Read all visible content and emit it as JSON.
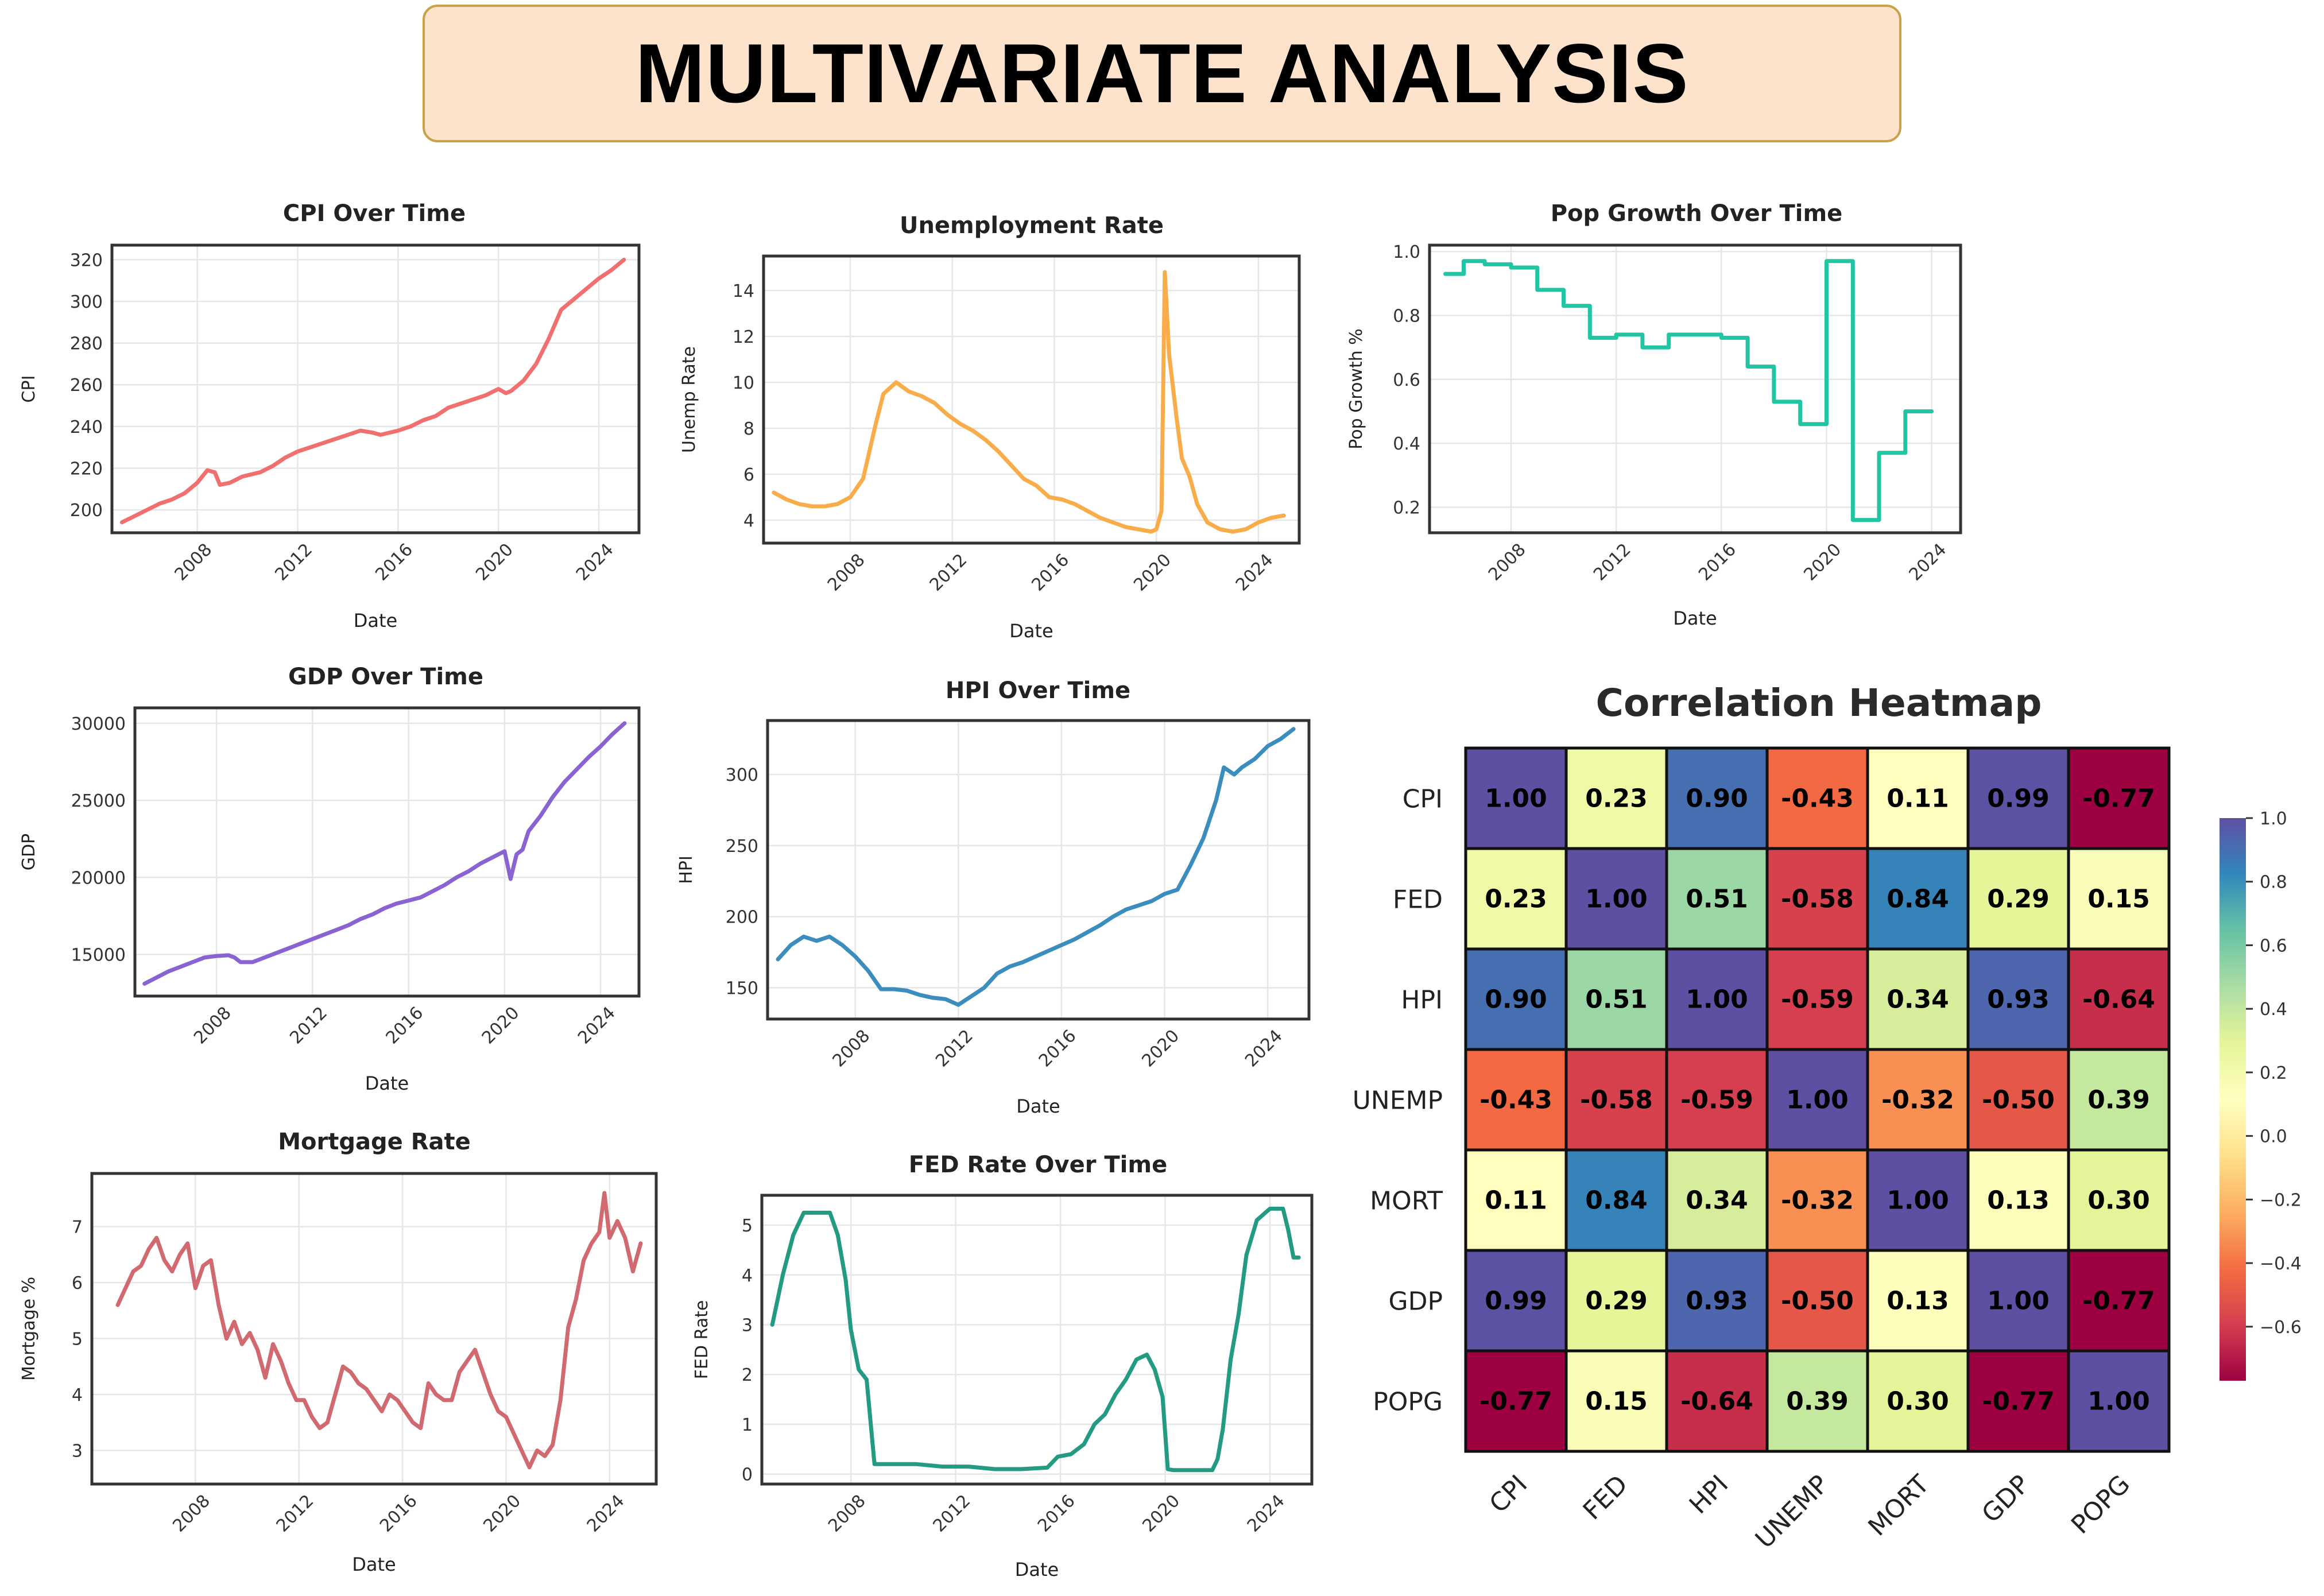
{
  "header": {
    "title": "MULTIVARIATE ANALYSIS"
  },
  "chart_data": [
    {
      "id": "cpi",
      "type": "line",
      "title": "CPI Over Time",
      "xlabel": "Date",
      "ylabel": "CPI",
      "color": "#f07070",
      "x_ticks": [
        "2008",
        "2012",
        "2016",
        "2020",
        "2024"
      ],
      "y_ticks": [
        "200",
        "220",
        "240",
        "260",
        "280",
        "300",
        "320"
      ],
      "xlim": [
        2004.6,
        2025.6
      ],
      "ylim": [
        189,
        327
      ],
      "x": [
        2005.0,
        2005.5,
        2006.0,
        2006.5,
        2007.0,
        2007.5,
        2008.0,
        2008.4,
        2008.7,
        2008.9,
        2009.3,
        2009.8,
        2010.5,
        2011.0,
        2011.5,
        2012.0,
        2012.5,
        2013.0,
        2014.0,
        2014.5,
        2015.0,
        2015.3,
        2016.0,
        2016.5,
        2017.0,
        2017.5,
        2018.0,
        2018.5,
        2019.0,
        2019.5,
        2020.0,
        2020.3,
        2020.5,
        2021.0,
        2021.5,
        2022.0,
        2022.5,
        2023.0,
        2023.5,
        2024.0,
        2024.5,
        2025.0
      ],
      "y": [
        194,
        197,
        200,
        203,
        205,
        208,
        213,
        219,
        218,
        212,
        213,
        216,
        218,
        221,
        225,
        228,
        230,
        232,
        236,
        238,
        237,
        236,
        238,
        240,
        243,
        245,
        249,
        251,
        253,
        255,
        258,
        256,
        257,
        262,
        270,
        282,
        296,
        301,
        306,
        311,
        315,
        320
      ]
    },
    {
      "id": "unemp",
      "type": "line",
      "title": "Unemployment Rate",
      "xlabel": "Date",
      "ylabel": "Unemp Rate",
      "color": "#f8ad4a",
      "x_ticks": [
        "2008",
        "2012",
        "2016",
        "2020",
        "2024"
      ],
      "y_ticks": [
        "4",
        "6",
        "8",
        "10",
        "12",
        "14"
      ],
      "xlim": [
        2004.6,
        2025.6
      ],
      "ylim": [
        3.0,
        15.5
      ],
      "x": [
        2005.0,
        2005.5,
        2006.0,
        2006.5,
        2007.0,
        2007.5,
        2008.0,
        2008.5,
        2009.0,
        2009.3,
        2009.8,
        2010.3,
        2010.8,
        2011.3,
        2011.8,
        2012.3,
        2012.8,
        2013.3,
        2013.8,
        2014.3,
        2014.8,
        2015.3,
        2015.8,
        2016.3,
        2016.8,
        2017.3,
        2017.8,
        2018.3,
        2018.8,
        2019.3,
        2019.8,
        2020.0,
        2020.2,
        2020.33,
        2020.5,
        2020.8,
        2021.0,
        2021.3,
        2021.6,
        2022.0,
        2022.5,
        2023.0,
        2023.5,
        2024.0,
        2024.5,
        2025.0
      ],
      "y": [
        5.2,
        4.9,
        4.7,
        4.6,
        4.6,
        4.7,
        5.0,
        5.8,
        8.2,
        9.5,
        10.0,
        9.6,
        9.4,
        9.1,
        8.6,
        8.2,
        7.9,
        7.5,
        7.0,
        6.4,
        5.8,
        5.5,
        5.0,
        4.9,
        4.7,
        4.4,
        4.1,
        3.9,
        3.7,
        3.6,
        3.5,
        3.6,
        4.4,
        14.8,
        11.2,
        8.4,
        6.7,
        5.9,
        4.7,
        3.9,
        3.6,
        3.5,
        3.6,
        3.9,
        4.1,
        4.2
      ]
    },
    {
      "id": "popg",
      "type": "line",
      "step": true,
      "title": "Pop Growth Over Time",
      "xlabel": "Date",
      "ylabel": "Pop Growth %",
      "color": "#21c4a3",
      "x_ticks": [
        "2008",
        "2012",
        "2016",
        "2020",
        "2024"
      ],
      "y_ticks": [
        "0.2",
        "0.4",
        "0.6",
        "0.8",
        "1.0"
      ],
      "xlim": [
        2004.9,
        2025.1
      ],
      "ylim": [
        0.12,
        1.02
      ],
      "x": [
        2005.5,
        2006.2,
        2007.0,
        2008.0,
        2009.0,
        2010.0,
        2011.0,
        2012.0,
        2013.0,
        2014.0,
        2015.0,
        2016.0,
        2017.0,
        2018.0,
        2019.0,
        2020.0,
        2021.0,
        2022.0,
        2023.0,
        2024.0
      ],
      "y": [
        0.93,
        0.97,
        0.96,
        0.95,
        0.88,
        0.83,
        0.73,
        0.74,
        0.7,
        0.74,
        0.74,
        0.73,
        0.64,
        0.53,
        0.46,
        0.97,
        0.16,
        0.37,
        0.5,
        0.5
      ]
    },
    {
      "id": "gdp",
      "type": "line",
      "title": "GDP Over Time",
      "xlabel": "Date",
      "ylabel": "GDP",
      "color": "#8a63d2",
      "x_ticks": [
        "2008",
        "2012",
        "2016",
        "2020",
        "2024"
      ],
      "y_ticks": [
        "15000",
        "20000",
        "25000",
        "30000"
      ],
      "xlim": [
        2004.6,
        2025.6
      ],
      "ylim": [
        12300,
        31000
      ],
      "x": [
        2005.0,
        2005.5,
        2006.0,
        2006.5,
        2007.0,
        2007.5,
        2008.0,
        2008.5,
        2008.75,
        2009.0,
        2009.5,
        2010.0,
        2010.5,
        2011.0,
        2011.5,
        2012.0,
        2012.5,
        2013.0,
        2013.5,
        2014.0,
        2014.5,
        2015.0,
        2015.5,
        2016.0,
        2016.5,
        2017.0,
        2017.5,
        2018.0,
        2018.5,
        2019.0,
        2019.5,
        2020.0,
        2020.25,
        2020.5,
        2020.75,
        2021.0,
        2021.5,
        2022.0,
        2022.5,
        2023.0,
        2023.5,
        2024.0,
        2024.5,
        2025.0
      ],
      "y": [
        13100,
        13500,
        13900,
        14200,
        14500,
        14800,
        14900,
        14950,
        14800,
        14500,
        14500,
        14800,
        15100,
        15400,
        15700,
        16000,
        16300,
        16600,
        16900,
        17300,
        17600,
        18000,
        18300,
        18500,
        18700,
        19100,
        19500,
        20000,
        20400,
        20900,
        21300,
        21700,
        19900,
        21500,
        21800,
        23000,
        24000,
        25200,
        26200,
        27000,
        27800,
        28500,
        29300,
        30000
      ]
    },
    {
      "id": "hpi",
      "type": "line",
      "title": "HPI Over Time",
      "xlabel": "Date",
      "ylabel": "HPI",
      "color": "#3a8dbc",
      "x_ticks": [
        "2008",
        "2012",
        "2016",
        "2020",
        "2024"
      ],
      "y_ticks": [
        "150",
        "200",
        "250",
        "300"
      ],
      "xlim": [
        2004.6,
        2025.6
      ],
      "ylim": [
        128,
        338
      ],
      "x": [
        2005.0,
        2005.5,
        2006.0,
        2006.5,
        2007.0,
        2007.5,
        2008.0,
        2008.5,
        2009.0,
        2009.5,
        2010.0,
        2010.5,
        2011.0,
        2011.5,
        2012.0,
        2012.5,
        2013.0,
        2013.5,
        2014.0,
        2014.5,
        2015.0,
        2015.5,
        2016.0,
        2016.5,
        2017.0,
        2017.5,
        2018.0,
        2018.5,
        2019.0,
        2019.5,
        2020.0,
        2020.5,
        2021.0,
        2021.5,
        2022.0,
        2022.3,
        2022.7,
        2023.0,
        2023.5,
        2024.0,
        2024.5,
        2025.0
      ],
      "y": [
        170,
        180,
        186,
        183,
        186,
        180,
        172,
        162,
        149,
        149,
        148,
        145,
        143,
        142,
        138,
        144,
        150,
        160,
        165,
        168,
        172,
        176,
        180,
        184,
        189,
        194,
        200,
        205,
        208,
        211,
        216,
        219,
        236,
        255,
        282,
        305,
        300,
        305,
        311,
        320,
        325,
        332
      ]
    },
    {
      "id": "mort",
      "type": "line",
      "title": "Mortgage Rate",
      "xlabel": "Date",
      "ylabel": "Mortgage %",
      "color": "#d06a70",
      "x_ticks": [
        "2008",
        "2012",
        "2016",
        "2020",
        "2024"
      ],
      "y_ticks": [
        "3",
        "4",
        "5",
        "6",
        "7"
      ],
      "xlim": [
        2004.0,
        2025.8
      ],
      "ylim": [
        2.4,
        7.95
      ],
      "x": [
        2005.0,
        2005.3,
        2005.6,
        2005.9,
        2006.2,
        2006.5,
        2006.8,
        2007.1,
        2007.4,
        2007.7,
        2008.0,
        2008.3,
        2008.6,
        2008.9,
        2009.2,
        2009.5,
        2009.8,
        2010.1,
        2010.4,
        2010.7,
        2011.0,
        2011.3,
        2011.6,
        2011.9,
        2012.2,
        2012.5,
        2012.8,
        2013.1,
        2013.4,
        2013.7,
        2014.0,
        2014.3,
        2014.6,
        2014.9,
        2015.2,
        2015.5,
        2015.8,
        2016.1,
        2016.4,
        2016.7,
        2017.0,
        2017.3,
        2017.6,
        2017.9,
        2018.2,
        2018.5,
        2018.8,
        2019.1,
        2019.4,
        2019.7,
        2020.0,
        2020.3,
        2020.6,
        2020.9,
        2021.2,
        2021.5,
        2021.8,
        2022.1,
        2022.4,
        2022.7,
        2023.0,
        2023.3,
        2023.6,
        2023.8,
        2024.0,
        2024.3,
        2024.6,
        2024.9,
        2025.2
      ],
      "y": [
        5.6,
        5.9,
        6.2,
        6.3,
        6.6,
        6.8,
        6.4,
        6.2,
        6.5,
        6.7,
        5.9,
        6.3,
        6.4,
        5.6,
        5.0,
        5.3,
        4.9,
        5.1,
        4.8,
        4.3,
        4.9,
        4.6,
        4.2,
        3.9,
        3.9,
        3.6,
        3.4,
        3.5,
        4.0,
        4.5,
        4.4,
        4.2,
        4.1,
        3.9,
        3.7,
        4.0,
        3.9,
        3.7,
        3.5,
        3.4,
        4.2,
        4.0,
        3.9,
        3.9,
        4.4,
        4.6,
        4.8,
        4.4,
        4.0,
        3.7,
        3.6,
        3.3,
        3.0,
        2.7,
        3.0,
        2.9,
        3.1,
        3.9,
        5.2,
        5.7,
        6.4,
        6.7,
        6.9,
        7.6,
        6.8,
        7.1,
        6.8,
        6.2,
        6.7
      ]
    },
    {
      "id": "fed",
      "type": "line",
      "title": "FED Rate Over Time",
      "xlabel": "Date",
      "ylabel": "FED Rate",
      "color": "#229b82",
      "x_ticks": [
        "2008",
        "2012",
        "2016",
        "2020",
        "2024"
      ],
      "y_ticks": [
        "0",
        "1",
        "2",
        "3",
        "4",
        "5"
      ],
      "xlim": [
        2004.6,
        2025.6
      ],
      "ylim": [
        -0.2,
        5.6
      ],
      "x": [
        2005.0,
        2005.4,
        2005.8,
        2006.2,
        2006.5,
        2006.8,
        2007.2,
        2007.5,
        2007.8,
        2008.0,
        2008.3,
        2008.6,
        2008.9,
        2009.5,
        2010.5,
        2011.5,
        2012.5,
        2013.5,
        2014.5,
        2015.5,
        2015.9,
        2016.4,
        2016.9,
        2017.3,
        2017.7,
        2018.1,
        2018.5,
        2018.9,
        2019.3,
        2019.6,
        2019.9,
        2020.1,
        2020.3,
        2021.0,
        2021.8,
        2022.0,
        2022.2,
        2022.5,
        2022.8,
        2023.1,
        2023.5,
        2024.0,
        2024.5,
        2024.7,
        2024.9,
        2025.1
      ],
      "y": [
        3.0,
        4.0,
        4.8,
        5.25,
        5.25,
        5.25,
        5.25,
        4.8,
        3.9,
        2.9,
        2.1,
        1.9,
        0.2,
        0.2,
        0.2,
        0.15,
        0.15,
        0.1,
        0.1,
        0.13,
        0.35,
        0.4,
        0.6,
        1.0,
        1.2,
        1.6,
        1.9,
        2.3,
        2.4,
        2.1,
        1.55,
        0.1,
        0.08,
        0.08,
        0.08,
        0.3,
        0.9,
        2.3,
        3.2,
        4.4,
        5.1,
        5.33,
        5.33,
        4.9,
        4.35,
        4.35
      ]
    },
    {
      "id": "corr",
      "type": "heatmap",
      "title": "Correlation Heatmap",
      "labels": [
        "CPI",
        "FED",
        "HPI",
        "UNEMP",
        "MORT",
        "GDP",
        "POPG"
      ],
      "matrix": [
        [
          1.0,
          0.23,
          0.9,
          -0.43,
          0.11,
          0.99,
          -0.77
        ],
        [
          0.23,
          1.0,
          0.51,
          -0.58,
          0.84,
          0.29,
          0.15
        ],
        [
          0.9,
          0.51,
          1.0,
          -0.59,
          0.34,
          0.93,
          -0.64
        ],
        [
          -0.43,
          -0.58,
          -0.59,
          1.0,
          -0.32,
          -0.5,
          0.39
        ],
        [
          0.11,
          0.84,
          0.34,
          -0.32,
          1.0,
          0.13,
          0.3
        ],
        [
          0.99,
          0.29,
          0.93,
          -0.5,
          0.13,
          1.0,
          -0.77
        ],
        [
          -0.77,
          0.15,
          -0.64,
          0.39,
          0.3,
          -0.77,
          1.0
        ]
      ],
      "colorbar_ticks": [
        "1.0",
        "0.8",
        "0.6",
        "0.4",
        "0.2",
        "0.0",
        "−0.2",
        "−0.4",
        "−0.6"
      ],
      "vmin": -0.77,
      "vmax": 1.0,
      "colormap": "Spectral"
    }
  ]
}
